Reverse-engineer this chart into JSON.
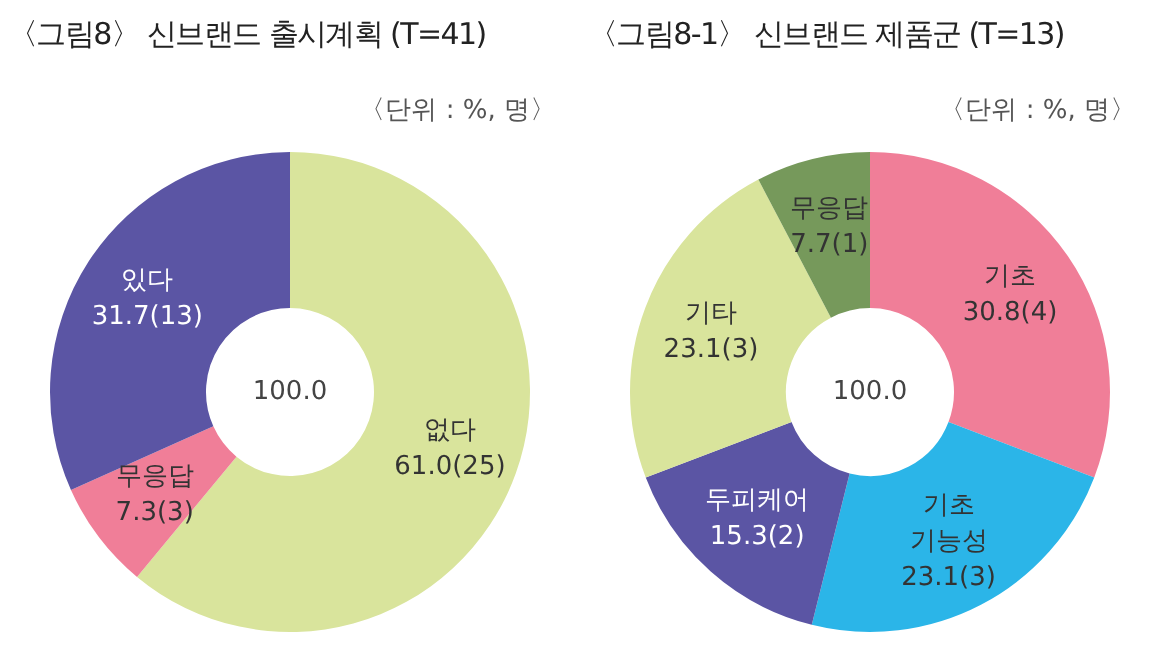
{
  "chart_data": [
    {
      "type": "donut",
      "title": "〈그림8〉 신브랜드 출시계획 (T=41)",
      "subtitle": "〈단위 : %, 명〉",
      "categories": [
        "없다",
        "무응답",
        "있다"
      ],
      "values": [
        61.0,
        7.3,
        31.7
      ],
      "colors": [
        "#d9e49c",
        "#f07e98",
        "#5b55a4"
      ],
      "value_labels": [
        "61.0(25)",
        "7.3(3)",
        "31.7(13)"
      ],
      "annotations": [
        "100.0"
      ]
    },
    {
      "type": "donut",
      "title": "〈그림8-1〉 신브랜드 제품군 (T=13)",
      "subtitle": "〈단위 : %, 명〉",
      "categories": [
        "기초",
        "기초 기능성",
        "두피케어",
        "기타",
        "무응답"
      ],
      "values": [
        30.8,
        23.1,
        15.3,
        23.1,
        7.7
      ],
      "colors": [
        "#f07e98",
        "#2bb5e8",
        "#5b55a4",
        "#d9e49c",
        "#76995b"
      ],
      "value_labels": [
        "30.8(4)",
        "23.1(3)",
        "15.3(2)",
        "23.1(3)",
        "7.7(1)"
      ],
      "annotations": [
        "100.0"
      ]
    }
  ]
}
